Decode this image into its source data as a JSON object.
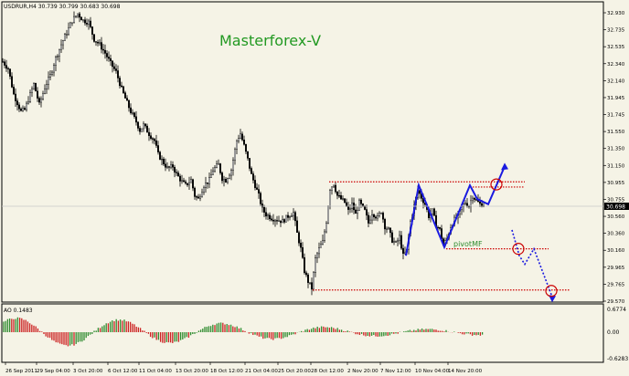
{
  "header": {
    "symbol_info": "USDRUR,H4  30.739 30.799 30.683 30.698",
    "watermark": "Masterforex-V"
  },
  "colors": {
    "background": "#f5f3e6",
    "candle": "#000000",
    "zigzag": "#1a1ae0",
    "levels": "#cc0000",
    "ao_up": "#2e8b2e",
    "ao_down": "#cc2222",
    "watermark": "#229922",
    "pivot_label": "#2e8b2e"
  },
  "annotations": {
    "pivot_label": "pivotMF",
    "current_price": "30.698"
  },
  "price_axis": {
    "ticks": [
      "32.930",
      "32.735",
      "32.535",
      "32.340",
      "32.140",
      "31.945",
      "31.745",
      "31.550",
      "31.350",
      "31.150",
      "30.955",
      "30.755",
      "30.560",
      "30.360",
      "30.160",
      "29.965",
      "29.765",
      "29.570"
    ]
  },
  "ao_panel": {
    "label": "AO 0.1483",
    "ticks": [
      "0.6774",
      "0.00",
      "-0.6283"
    ]
  },
  "time_axis": {
    "ticks": [
      "26 Sep 2011",
      "29 Sep 04:00",
      "3 Oct 20:00",
      "6 Oct 12:00",
      "11 Oct 04:00",
      "13 Oct 20:00",
      "18 Oct 12:00",
      "21 Oct 04:00",
      "25 Oct 20:00",
      "28 Oct 12:00",
      "2 Nov 20:00",
      "7 Nov 12:00",
      "10 Nov 04:00",
      "14 Nov 20:00"
    ]
  },
  "chart_data": {
    "type": "candlestick",
    "series_path_keypoints": [
      [
        0,
        32.36
      ],
      [
        6,
        32.28
      ],
      [
        12,
        31.98
      ],
      [
        16,
        31.88
      ],
      [
        20,
        31.78
      ],
      [
        24,
        31.8
      ],
      [
        28,
        31.92
      ],
      [
        34,
        32.1
      ],
      [
        40,
        31.86
      ],
      [
        46,
        32.06
      ],
      [
        52,
        32.2
      ],
      [
        58,
        32.4
      ],
      [
        64,
        32.56
      ],
      [
        70,
        32.7
      ],
      [
        76,
        32.84
      ],
      [
        82,
        32.92
      ],
      [
        88,
        32.84
      ],
      [
        94,
        32.82
      ],
      [
        100,
        32.62
      ],
      [
        106,
        32.56
      ],
      [
        112,
        32.46
      ],
      [
        118,
        32.34
      ],
      [
        124,
        32.24
      ],
      [
        130,
        32.04
      ],
      [
        136,
        31.88
      ],
      [
        140,
        31.78
      ],
      [
        146,
        31.66
      ],
      [
        150,
        31.56
      ],
      [
        154,
        31.62
      ],
      [
        160,
        31.52
      ],
      [
        166,
        31.44
      ],
      [
        170,
        31.28
      ],
      [
        176,
        31.18
      ],
      [
        180,
        31.12
      ],
      [
        186,
        31.14
      ],
      [
        190,
        31.05
      ],
      [
        196,
        30.96
      ],
      [
        200,
        30.92
      ],
      [
        206,
        30.98
      ],
      [
        210,
        30.8
      ],
      [
        214,
        30.76
      ],
      [
        220,
        30.92
      ],
      [
        226,
        30.98
      ],
      [
        230,
        31.1
      ],
      [
        236,
        31.16
      ],
      [
        240,
        31.0
      ],
      [
        244,
        30.98
      ],
      [
        250,
        31.1
      ],
      [
        256,
        31.44
      ],
      [
        260,
        31.52
      ],
      [
        264,
        31.38
      ],
      [
        268,
        31.22
      ],
      [
        272,
        31.04
      ],
      [
        276,
        30.92
      ],
      [
        280,
        30.8
      ],
      [
        284,
        30.64
      ],
      [
        288,
        30.58
      ],
      [
        294,
        30.54
      ],
      [
        300,
        30.52
      ],
      [
        306,
        30.5
      ],
      [
        312,
        30.56
      ],
      [
        318,
        30.6
      ],
      [
        322,
        30.36
      ],
      [
        326,
        30.18
      ],
      [
        330,
        29.92
      ],
      [
        334,
        29.8
      ],
      [
        338,
        29.72
      ],
      [
        342,
        30.06
      ],
      [
        346,
        30.18
      ],
      [
        350,
        30.26
      ],
      [
        354,
        30.5
      ],
      [
        358,
        30.88
      ],
      [
        362,
        30.94
      ],
      [
        366,
        30.8
      ],
      [
        370,
        30.76
      ],
      [
        374,
        30.72
      ],
      [
        378,
        30.62
      ],
      [
        382,
        30.7
      ],
      [
        386,
        30.58
      ],
      [
        390,
        30.72
      ],
      [
        396,
        30.62
      ],
      [
        400,
        30.48
      ],
      [
        404,
        30.6
      ],
      [
        410,
        30.54
      ],
      [
        414,
        30.62
      ],
      [
        418,
        30.44
      ],
      [
        422,
        30.4
      ],
      [
        426,
        30.28
      ],
      [
        430,
        30.24
      ],
      [
        434,
        30.32
      ],
      [
        438,
        30.1
      ],
      [
        442,
        30.16
      ],
      [
        446,
        30.5
      ],
      [
        450,
        30.68
      ],
      [
        454,
        30.86
      ],
      [
        458,
        30.78
      ],
      [
        462,
        30.7
      ],
      [
        466,
        30.56
      ],
      [
        470,
        30.62
      ],
      [
        474,
        30.46
      ],
      [
        478,
        30.4
      ],
      [
        482,
        30.22
      ],
      [
        486,
        30.3
      ],
      [
        490,
        30.44
      ],
      [
        494,
        30.52
      ],
      [
        498,
        30.56
      ],
      [
        502,
        30.66
      ],
      [
        506,
        30.72
      ],
      [
        510,
        30.68
      ],
      [
        514,
        30.8
      ],
      [
        518,
        30.74
      ],
      [
        522,
        30.7
      ],
      [
        526,
        30.7
      ]
    ],
    "horizontal_levels": [
      {
        "price": 30.96,
        "x_from": 358,
        "x_to": 572
      },
      {
        "price": 30.9,
        "x_from": 512,
        "x_to": 572
      },
      {
        "price": 30.18,
        "x_from": 486,
        "x_to": 598
      },
      {
        "price": 29.7,
        "x_from": 340,
        "x_to": 622
      }
    ],
    "zigzag_solid": [
      [
        442,
        30.1
      ],
      [
        456,
        30.92
      ],
      [
        484,
        30.2
      ],
      [
        512,
        30.92
      ],
      [
        520,
        30.76
      ],
      [
        532,
        30.7
      ],
      [
        550,
        31.14
      ]
    ],
    "zigzag_dotted": [
      [
        558,
        30.4
      ],
      [
        566,
        30.1
      ],
      [
        572,
        30.0
      ],
      [
        582,
        30.18
      ],
      [
        602,
        29.62
      ]
    ],
    "circles": [
      [
        541,
        30.93
      ],
      [
        565,
        30.18
      ],
      [
        601,
        29.69
      ]
    ],
    "ao_values_note": "Awesome Oscillator histogram, green above zero when rising, red when falling"
  }
}
